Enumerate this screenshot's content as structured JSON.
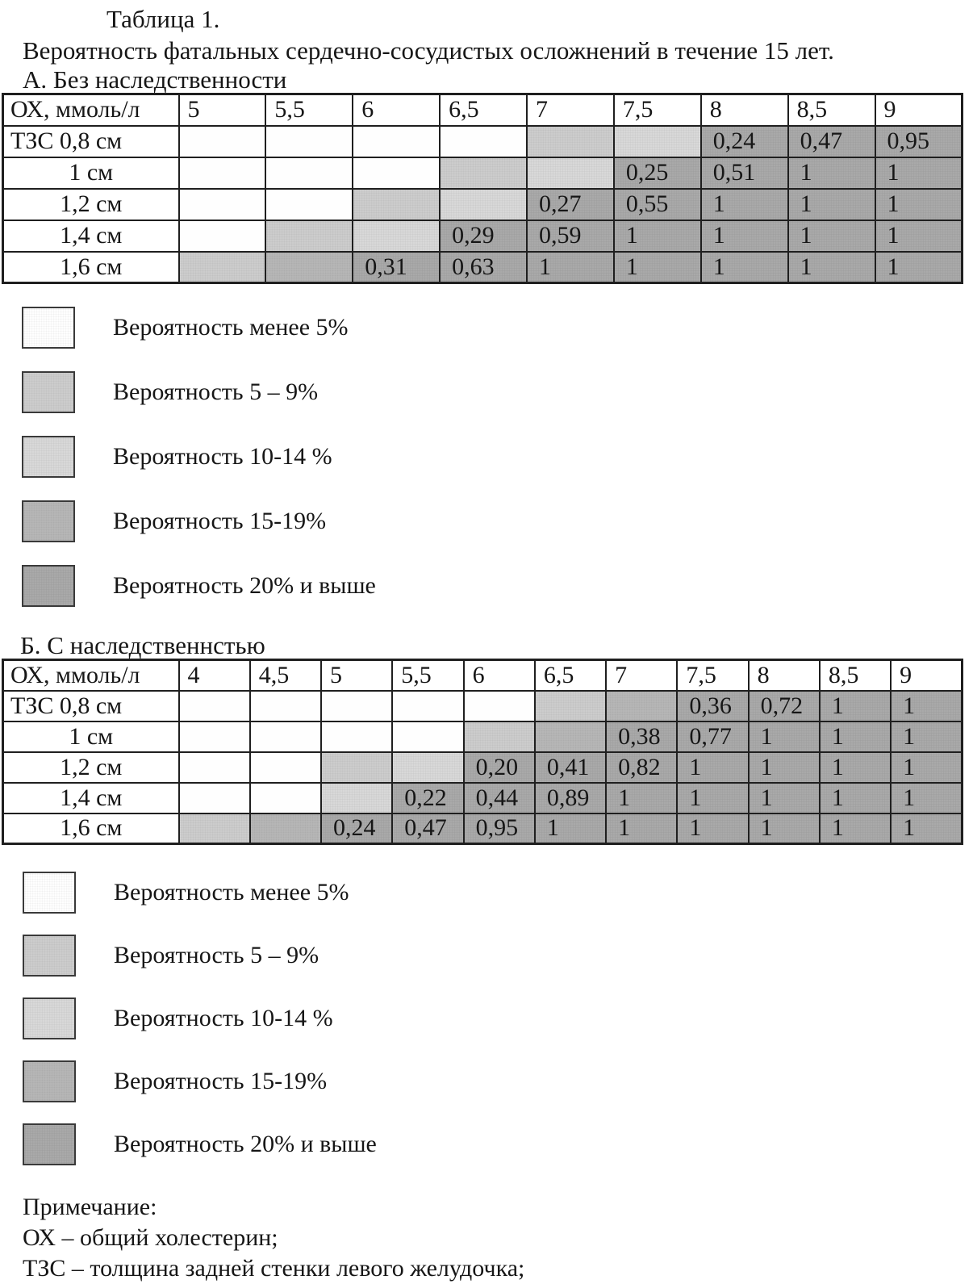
{
  "page": {
    "title": "Таблица 1.",
    "subtitle": "Вероятность фатальных сердечно-сосудистых осложнений в течение 15 лет."
  },
  "colors": {
    "level1": "#fefefe",
    "level2": "#cccccc",
    "level3": "#d8d8d8",
    "level4": "#b6b6b6",
    "level5": "#a9a9a9",
    "border": "#1f1f1f",
    "text": "#161616"
  },
  "legend_levels": [
    {
      "level": 1,
      "label": "Вероятность менее 5%"
    },
    {
      "level": 2,
      "label": "Вероятность 5 – 9%"
    },
    {
      "level": 3,
      "label": "Вероятность 10-14 %"
    },
    {
      "level": 4,
      "label": "Вероятность 15-19%"
    },
    {
      "level": 5,
      "label": "Вероятность 20% и выше"
    }
  ],
  "section_a": {
    "heading": "А. Без наследственности",
    "table": {
      "corner_label": "ОХ, ммоль/л",
      "col_headers": [
        "5",
        "5,5",
        "6",
        "6,5",
        "7",
        "7,5",
        "8",
        "8,5",
        "9"
      ],
      "rows": [
        {
          "label": "ТЗС 0,8 см",
          "cells": [
            {
              "level": 1,
              "value": ""
            },
            {
              "level": 1,
              "value": ""
            },
            {
              "level": 1,
              "value": ""
            },
            {
              "level": 1,
              "value": ""
            },
            {
              "level": 2,
              "value": ""
            },
            {
              "level": 3,
              "value": ""
            },
            {
              "level": 5,
              "value": "0,24"
            },
            {
              "level": 5,
              "value": "0,47"
            },
            {
              "level": 5,
              "value": "0,95"
            }
          ]
        },
        {
          "label": "1 см",
          "cells": [
            {
              "level": 1,
              "value": ""
            },
            {
              "level": 1,
              "value": ""
            },
            {
              "level": 1,
              "value": ""
            },
            {
              "level": 2,
              "value": ""
            },
            {
              "level": 3,
              "value": ""
            },
            {
              "level": 5,
              "value": "0,25"
            },
            {
              "level": 5,
              "value": "0,51"
            },
            {
              "level": 5,
              "value": "1"
            },
            {
              "level": 5,
              "value": "1"
            }
          ]
        },
        {
          "label": "1,2 см",
          "cells": [
            {
              "level": 1,
              "value": ""
            },
            {
              "level": 1,
              "value": ""
            },
            {
              "level": 2,
              "value": ""
            },
            {
              "level": 3,
              "value": ""
            },
            {
              "level": 5,
              "value": "0,27"
            },
            {
              "level": 5,
              "value": "0,55"
            },
            {
              "level": 5,
              "value": "1"
            },
            {
              "level": 5,
              "value": "1"
            },
            {
              "level": 5,
              "value": "1"
            }
          ]
        },
        {
          "label": "1,4 см",
          "cells": [
            {
              "level": 1,
              "value": ""
            },
            {
              "level": 2,
              "value": ""
            },
            {
              "level": 3,
              "value": ""
            },
            {
              "level": 5,
              "value": "0,29"
            },
            {
              "level": 5,
              "value": "0,59"
            },
            {
              "level": 5,
              "value": "1"
            },
            {
              "level": 5,
              "value": "1"
            },
            {
              "level": 5,
              "value": "1"
            },
            {
              "level": 5,
              "value": "1"
            }
          ]
        },
        {
          "label": "1,6 см",
          "cells": [
            {
              "level": 2,
              "value": ""
            },
            {
              "level": 4,
              "value": ""
            },
            {
              "level": 5,
              "value": "0,31"
            },
            {
              "level": 5,
              "value": "0,63"
            },
            {
              "level": 5,
              "value": "1"
            },
            {
              "level": 5,
              "value": "1"
            },
            {
              "level": 5,
              "value": "1"
            },
            {
              "level": 5,
              "value": "1"
            },
            {
              "level": 5,
              "value": "1"
            }
          ]
        }
      ]
    }
  },
  "section_b": {
    "heading": "Б. С наследственнстью",
    "table": {
      "corner_label": "ОХ, ммоль/л",
      "col_headers": [
        "4",
        "4,5",
        "5",
        "5,5",
        "6",
        "6,5",
        "7",
        "7,5",
        "8",
        "8,5",
        "9"
      ],
      "rows": [
        {
          "label": "ТЗС 0,8 см",
          "cells": [
            {
              "level": 1,
              "value": ""
            },
            {
              "level": 1,
              "value": ""
            },
            {
              "level": 1,
              "value": ""
            },
            {
              "level": 1,
              "value": ""
            },
            {
              "level": 1,
              "value": ""
            },
            {
              "level": 2,
              "value": ""
            },
            {
              "level": 4,
              "value": ""
            },
            {
              "level": 5,
              "value": "0,36"
            },
            {
              "level": 5,
              "value": "0,72"
            },
            {
              "level": 5,
              "value": "1"
            },
            {
              "level": 5,
              "value": "1"
            }
          ]
        },
        {
          "label": "1 см",
          "cells": [
            {
              "level": 1,
              "value": ""
            },
            {
              "level": 1,
              "value": ""
            },
            {
              "level": 1,
              "value": ""
            },
            {
              "level": 1,
              "value": ""
            },
            {
              "level": 2,
              "value": ""
            },
            {
              "level": 4,
              "value": ""
            },
            {
              "level": 5,
              "value": "0,38"
            },
            {
              "level": 5,
              "value": "0,77"
            },
            {
              "level": 5,
              "value": "1"
            },
            {
              "level": 5,
              "value": "1"
            },
            {
              "level": 5,
              "value": "1"
            }
          ]
        },
        {
          "label": "1,2 см",
          "cells": [
            {
              "level": 1,
              "value": ""
            },
            {
              "level": 1,
              "value": ""
            },
            {
              "level": 2,
              "value": ""
            },
            {
              "level": 3,
              "value": ""
            },
            {
              "level": 5,
              "value": "0,20"
            },
            {
              "level": 5,
              "value": "0,41"
            },
            {
              "level": 5,
              "value": "0,82"
            },
            {
              "level": 5,
              "value": "1"
            },
            {
              "level": 5,
              "value": "1"
            },
            {
              "level": 5,
              "value": "1"
            },
            {
              "level": 5,
              "value": "1"
            }
          ]
        },
        {
          "label": "1,4 см",
          "cells": [
            {
              "level": 1,
              "value": ""
            },
            {
              "level": 1,
              "value": ""
            },
            {
              "level": 3,
              "value": ""
            },
            {
              "level": 5,
              "value": "0,22"
            },
            {
              "level": 5,
              "value": "0,44"
            },
            {
              "level": 5,
              "value": "0,89"
            },
            {
              "level": 5,
              "value": "1"
            },
            {
              "level": 5,
              "value": "1"
            },
            {
              "level": 5,
              "value": "1"
            },
            {
              "level": 5,
              "value": "1"
            },
            {
              "level": 5,
              "value": "1"
            }
          ]
        },
        {
          "label": "1,6 см",
          "cells": [
            {
              "level": 2,
              "value": ""
            },
            {
              "level": 4,
              "value": ""
            },
            {
              "level": 5,
              "value": "0,24"
            },
            {
              "level": 5,
              "value": "0,47"
            },
            {
              "level": 5,
              "value": "0,95"
            },
            {
              "level": 5,
              "value": "1"
            },
            {
              "level": 5,
              "value": "1"
            },
            {
              "level": 5,
              "value": "1"
            },
            {
              "level": 5,
              "value": "1"
            },
            {
              "level": 5,
              "value": "1"
            },
            {
              "level": 5,
              "value": "1"
            }
          ]
        }
      ]
    }
  },
  "notes": [
    "Примечание:",
    "ОХ – общий холестерин;",
    "ТЗС – толщина задней стенки левого желудочка;"
  ]
}
